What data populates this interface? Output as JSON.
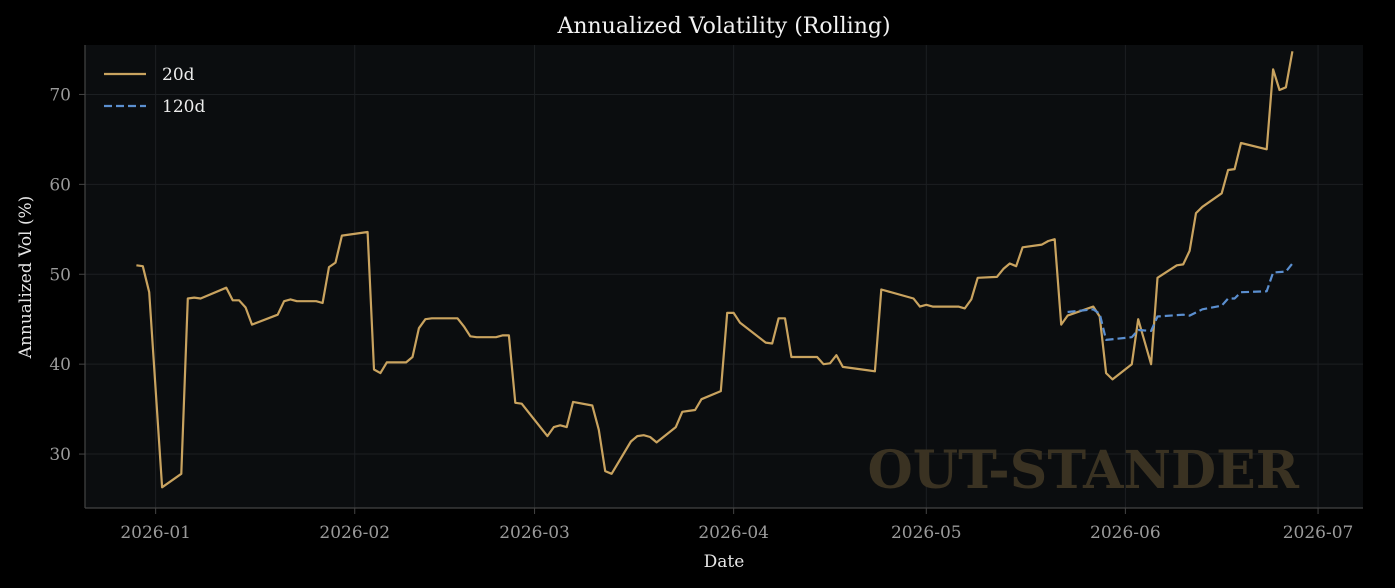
{
  "colors": {
    "figure_bg": "#000000",
    "plot_bg": "#0b0d0f",
    "grid": "#1c1f22",
    "spine": "#444444",
    "series_20d": "#c9a35f",
    "series_120d": "#5b8fd0",
    "watermark": "#3a3222"
  },
  "watermark": "OUT-STANDER",
  "chart_data": {
    "type": "line",
    "title": "Annualized Volatility (Rolling)",
    "xlabel": "Date",
    "ylabel": "Annualized Vol (%)",
    "xlim": [
      "2025-12-21",
      "2026-07-08"
    ],
    "ylim": [
      24,
      75.5
    ],
    "x_ticks": [
      "2026-01-01",
      "2026-02-01",
      "2026-03-01",
      "2026-04-01",
      "2026-05-01",
      "2026-06-01",
      "2026-07-01"
    ],
    "x_tick_labels": [
      "2026-01",
      "2026-02",
      "2026-03",
      "2026-04",
      "2026-05",
      "2026-06",
      "2026-07"
    ],
    "y_ticks": [
      30,
      40,
      50,
      60,
      70
    ],
    "y_tick_labels": [
      "30",
      "40",
      "50",
      "60",
      "70"
    ],
    "grid": true,
    "legend": "upper-left",
    "series": [
      {
        "name": "20d",
        "style": "solid",
        "color": "#c9a35f",
        "points": [
          [
            "2025-12-29",
            51.0
          ],
          [
            "2025-12-30",
            50.9
          ],
          [
            "2025-12-31",
            48.0
          ],
          [
            "2026-01-02",
            26.3
          ],
          [
            "2026-01-05",
            27.8
          ],
          [
            "2026-01-06",
            47.3
          ],
          [
            "2026-01-07",
            47.4
          ],
          [
            "2026-01-08",
            47.3
          ],
          [
            "2026-01-12",
            48.5
          ],
          [
            "2026-01-13",
            47.1
          ],
          [
            "2026-01-14",
            47.1
          ],
          [
            "2026-01-15",
            46.3
          ],
          [
            "2026-01-16",
            44.4
          ],
          [
            "2026-01-20",
            45.5
          ],
          [
            "2026-01-21",
            47.0
          ],
          [
            "2026-01-22",
            47.2
          ],
          [
            "2026-01-23",
            47.0
          ],
          [
            "2026-01-26",
            47.0
          ],
          [
            "2026-01-27",
            46.8
          ],
          [
            "2026-01-28",
            50.8
          ],
          [
            "2026-01-29",
            51.3
          ],
          [
            "2026-01-30",
            54.3
          ],
          [
            "2026-02-03",
            54.7
          ],
          [
            "2026-02-04",
            39.4
          ],
          [
            "2026-02-05",
            39.0
          ],
          [
            "2026-02-06",
            40.2
          ],
          [
            "2026-02-09",
            40.2
          ],
          [
            "2026-02-10",
            40.8
          ],
          [
            "2026-02-11",
            44.0
          ],
          [
            "2026-02-12",
            45.0
          ],
          [
            "2026-02-13",
            45.1
          ],
          [
            "2026-02-17",
            45.1
          ],
          [
            "2026-02-18",
            44.2
          ],
          [
            "2026-02-19",
            43.1
          ],
          [
            "2026-02-20",
            43.0
          ],
          [
            "2026-02-23",
            43.0
          ],
          [
            "2026-02-24",
            43.2
          ],
          [
            "2026-02-25",
            43.2
          ],
          [
            "2026-02-26",
            35.7
          ],
          [
            "2026-02-27",
            35.6
          ],
          [
            "2026-03-03",
            32.0
          ],
          [
            "2026-03-04",
            33.0
          ],
          [
            "2026-03-05",
            33.2
          ],
          [
            "2026-03-06",
            33.0
          ],
          [
            "2026-03-07",
            35.8
          ],
          [
            "2026-03-10",
            35.4
          ],
          [
            "2026-03-11",
            32.7
          ],
          [
            "2026-03-12",
            28.1
          ],
          [
            "2026-03-13",
            27.8
          ],
          [
            "2026-03-16",
            31.4
          ],
          [
            "2026-03-17",
            32.0
          ],
          [
            "2026-03-18",
            32.1
          ],
          [
            "2026-03-19",
            31.9
          ],
          [
            "2026-03-20",
            31.3
          ],
          [
            "2026-03-23",
            33.0
          ],
          [
            "2026-03-24",
            34.7
          ],
          [
            "2026-03-25",
            34.8
          ],
          [
            "2026-03-26",
            34.9
          ],
          [
            "2026-03-27",
            36.1
          ],
          [
            "2026-03-30",
            37.0
          ],
          [
            "2026-03-31",
            45.7
          ],
          [
            "2026-04-01",
            45.7
          ],
          [
            "2026-04-02",
            44.6
          ],
          [
            "2026-04-06",
            42.4
          ],
          [
            "2026-04-07",
            42.3
          ],
          [
            "2026-04-08",
            45.1
          ],
          [
            "2026-04-09",
            45.1
          ],
          [
            "2026-04-10",
            40.8
          ],
          [
            "2026-04-13",
            40.8
          ],
          [
            "2026-04-14",
            40.8
          ],
          [
            "2026-04-15",
            40.0
          ],
          [
            "2026-04-16",
            40.1
          ],
          [
            "2026-04-17",
            41.0
          ],
          [
            "2026-04-18",
            39.7
          ],
          [
            "2026-04-22",
            39.3
          ],
          [
            "2026-04-23",
            39.2
          ],
          [
            "2026-04-24",
            48.3
          ],
          [
            "2026-04-29",
            47.3
          ],
          [
            "2026-04-30",
            46.4
          ],
          [
            "2026-05-01",
            46.6
          ],
          [
            "2026-05-02",
            46.4
          ],
          [
            "2026-05-06",
            46.4
          ],
          [
            "2026-05-07",
            46.2
          ],
          [
            "2026-05-08",
            47.2
          ],
          [
            "2026-05-09",
            49.6
          ],
          [
            "2026-05-12",
            49.7
          ],
          [
            "2026-05-13",
            50.6
          ],
          [
            "2026-05-14",
            51.2
          ],
          [
            "2026-05-15",
            50.9
          ],
          [
            "2026-05-16",
            53.0
          ],
          [
            "2026-05-19",
            53.3
          ],
          [
            "2026-05-20",
            53.7
          ],
          [
            "2026-05-21",
            53.9
          ],
          [
            "2026-05-22",
            44.4
          ],
          [
            "2026-05-23",
            45.4
          ],
          [
            "2026-05-27",
            46.4
          ],
          [
            "2026-05-28",
            45.3
          ],
          [
            "2026-05-29",
            39.0
          ],
          [
            "2026-05-30",
            38.3
          ],
          [
            "2026-06-02",
            40.0
          ],
          [
            "2026-06-03",
            45.0
          ],
          [
            "2026-06-05",
            40.0
          ],
          [
            "2026-06-06",
            49.6
          ],
          [
            "2026-06-09",
            51.0
          ],
          [
            "2026-06-10",
            51.1
          ],
          [
            "2026-06-11",
            52.6
          ],
          [
            "2026-06-12",
            56.8
          ],
          [
            "2026-06-13",
            57.5
          ],
          [
            "2026-06-16",
            59.0
          ],
          [
            "2026-06-17",
            61.6
          ],
          [
            "2026-06-18",
            61.7
          ],
          [
            "2026-06-19",
            64.6
          ],
          [
            "2026-06-23",
            63.9
          ],
          [
            "2026-06-24",
            72.8
          ],
          [
            "2026-06-25",
            70.5
          ],
          [
            "2026-06-26",
            70.8
          ],
          [
            "2026-06-27",
            74.8
          ]
        ]
      },
      {
        "name": "120d",
        "style": "dashed",
        "color": "#5b8fd0",
        "points": [
          [
            "2026-05-23",
            45.8
          ],
          [
            "2026-05-27",
            46.1
          ],
          [
            "2026-05-28",
            45.6
          ],
          [
            "2026-05-29",
            42.7
          ],
          [
            "2026-06-02",
            43.0
          ],
          [
            "2026-06-03",
            43.8
          ],
          [
            "2026-06-05",
            43.7
          ],
          [
            "2026-06-06",
            45.3
          ],
          [
            "2026-06-10",
            45.5
          ],
          [
            "2026-06-11",
            45.4
          ],
          [
            "2026-06-13",
            46.1
          ],
          [
            "2026-06-16",
            46.5
          ],
          [
            "2026-06-17",
            47.3
          ],
          [
            "2026-06-18",
            47.3
          ],
          [
            "2026-06-19",
            48.0
          ],
          [
            "2026-06-23",
            48.1
          ],
          [
            "2026-06-24",
            50.2
          ],
          [
            "2026-06-26",
            50.3
          ],
          [
            "2026-06-27",
            51.2
          ]
        ]
      }
    ]
  }
}
